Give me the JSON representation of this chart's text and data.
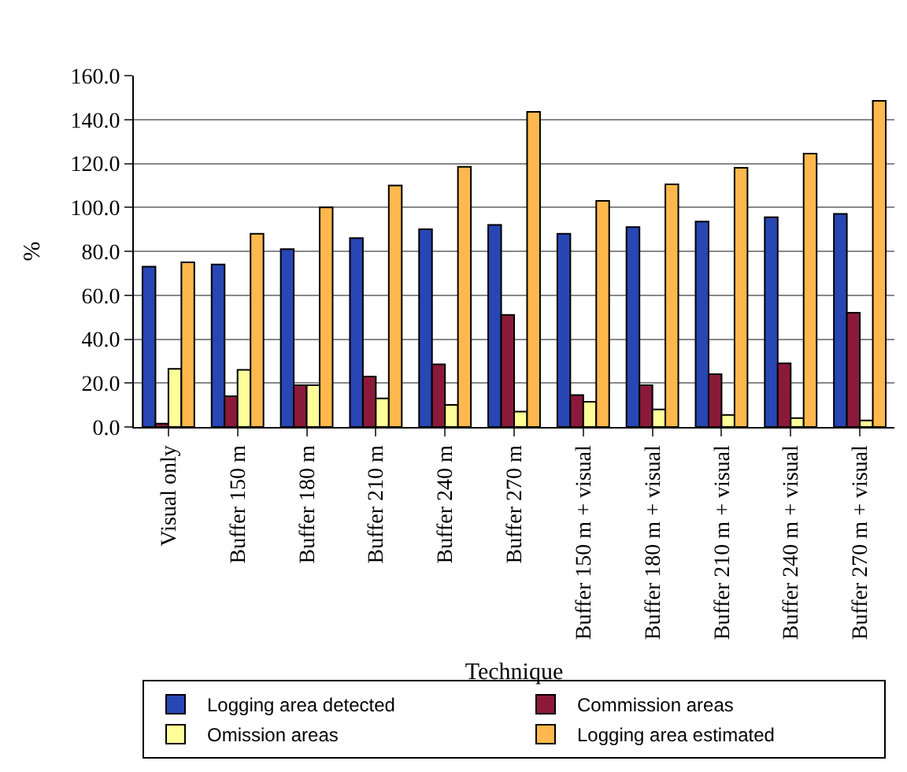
{
  "chart_data": {
    "type": "bar",
    "xlabel": "Technique",
    "ylabel": "%",
    "categories": [
      "Visual only",
      "Buffer 150 m",
      "Buffer 180 m",
      "Buffer 210 m",
      "Buffer 240 m",
      "Buffer 270 m",
      "Buffer 150 m + visual",
      "Buffer 180 m + visual",
      "Buffer 210 m + visual",
      "Buffer 240 m + visual",
      "Buffer 270 m + visual"
    ],
    "series": [
      {
        "name": "Logging area detected",
        "color": "#2846b4",
        "values": [
          73,
          74,
          81,
          86,
          90,
          92,
          88,
          91,
          93.5,
          95.5,
          97
        ]
      },
      {
        "name": "Commission areas",
        "color": "#8b1a3a",
        "values": [
          1.5,
          14,
          19,
          23,
          28.5,
          51,
          14.5,
          19,
          24,
          29,
          52
        ]
      },
      {
        "name": "Omission areas",
        "color": "#ffff99",
        "values": [
          26.5,
          26,
          19,
          13,
          10,
          7,
          11.5,
          8,
          5.5,
          4,
          3
        ]
      },
      {
        "name": "Logging area estimated",
        "color": "#ffb84d",
        "values": [
          75,
          88,
          100,
          110,
          118.5,
          143.5,
          103,
          110.5,
          118,
          124.5,
          148.5
        ]
      }
    ],
    "ylim": [
      0,
      160
    ],
    "yticks": [
      {
        "value": 0,
        "label": "0.0"
      },
      {
        "value": 20,
        "label": "20.0"
      },
      {
        "value": 40,
        "label": "40.0"
      },
      {
        "value": 60,
        "label": "60.0"
      },
      {
        "value": 80,
        "label": "80.0"
      },
      {
        "value": 100,
        "label": "100.0"
      },
      {
        "value": 120,
        "label": "120.0"
      },
      {
        "value": 140,
        "label": "140.0"
      },
      {
        "value": 160,
        "label": "160.0"
      }
    ],
    "grid": "y",
    "legend": "bottom"
  }
}
